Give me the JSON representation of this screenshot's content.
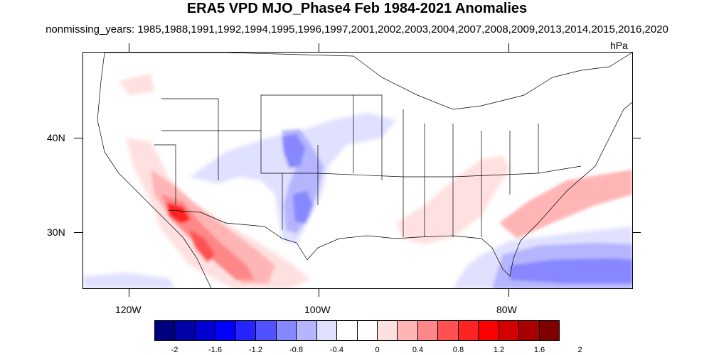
{
  "title": "ERA5 VPD MJO_Phase4 Feb 1984-2021 Anomalies",
  "subtitle": "nonmissing_years: 1985,1988,1991,1992,1994,1995,1996,1997,2001,2002,2003,2004,2007,2008,2009,2013,2014,2015,2016,2020",
  "units": "hPa",
  "map": {
    "region": "Contiguous United States",
    "lat_range": [
      24,
      50
    ],
    "lon_range": [
      -125,
      -67
    ],
    "lat_labels": [
      "40N",
      "30N"
    ],
    "lon_labels": [
      "120W",
      "100W",
      "80W"
    ],
    "grid": false
  },
  "colorbar": {
    "labels": [
      "-2",
      "-1.6",
      "-1.2",
      "-0.8",
      "-0.4",
      "0",
      "0.4",
      "0.8",
      "1.2",
      "1.6",
      "2"
    ],
    "colors": [
      "#00007f",
      "#0000a8",
      "#0000d2",
      "#0000fb",
      "#2424ff",
      "#5151ff",
      "#8787ff",
      "#b5b5ff",
      "#e0e0ff",
      "#ffffff",
      "#ffffff",
      "#ffe0e0",
      "#ffb5b5",
      "#ff8787",
      "#ff5151",
      "#ff2424",
      "#fb0000",
      "#d20000",
      "#a80000",
      "#7f0000"
    ]
  },
  "colors": {
    "positive_accent": "#ff2424",
    "negative_accent": "#2424ff"
  }
}
